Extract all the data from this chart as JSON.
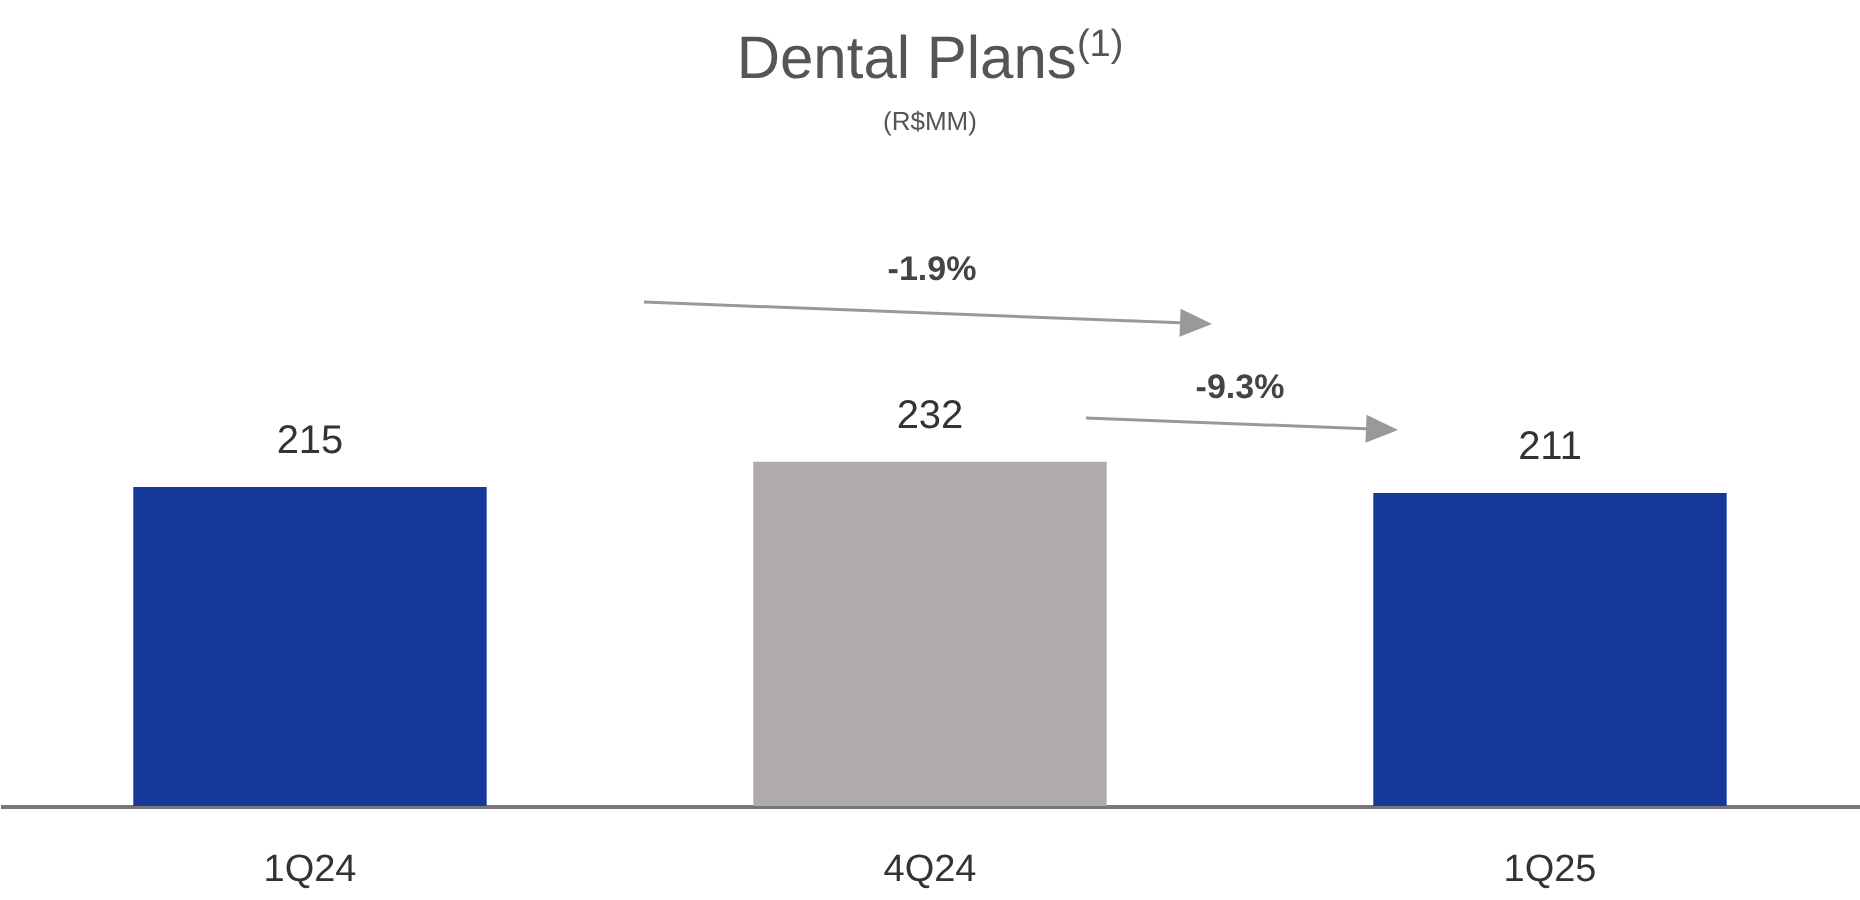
{
  "chart_data": {
    "type": "bar",
    "title": "Dental Plans$^{(1)}$",
    "subtitle": "(R$MM)",
    "categories": [
      "1Q24",
      "4Q24",
      "1Q25"
    ],
    "values": [
      215,
      232,
      211
    ],
    "colors": [
      "#16389a",
      "#b0abaa",
      "#16389a"
    ],
    "data_labels": true,
    "annotations": [
      "-1.9%",
      "-9.3%"
    ]
  }
}
